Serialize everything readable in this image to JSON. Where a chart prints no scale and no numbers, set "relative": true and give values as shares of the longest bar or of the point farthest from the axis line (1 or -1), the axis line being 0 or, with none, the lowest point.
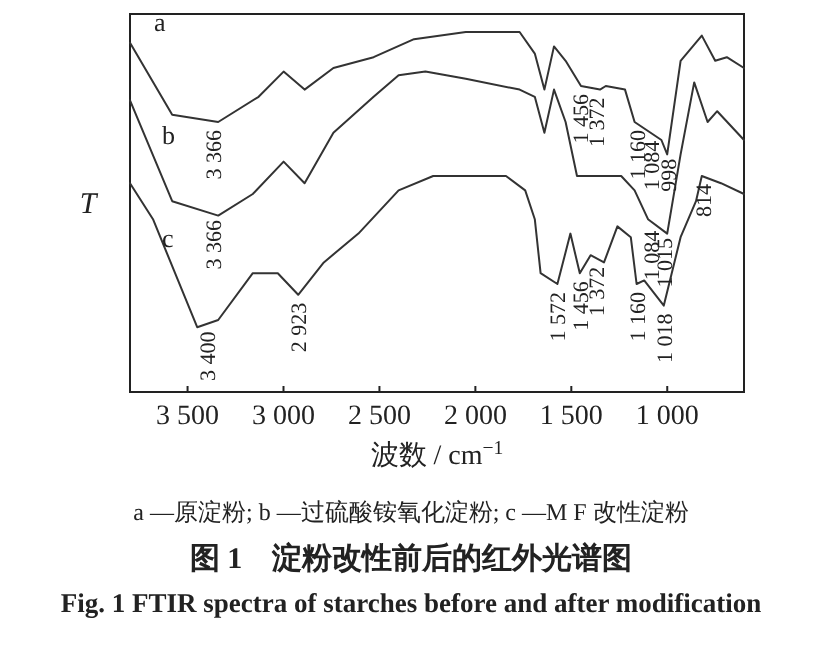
{
  "chart_data": {
    "type": "line",
    "relative": true,
    "title": "图 1　淀粉改性前后的红外光谱图",
    "subtitle": "Fig. 1 FTIR spectra of starches before and after modification",
    "xlabel": "波数 / cm$^{−1}$",
    "ylabel": "T",
    "xlim": [
      3800,
      600
    ],
    "xticks": [
      {
        "value": 3500,
        "label": "3 500"
      },
      {
        "value": 3000,
        "label": "3 000"
      },
      {
        "value": 2500,
        "label": "2 500"
      },
      {
        "value": 2000,
        "label": "2 000"
      },
      {
        "value": 1500,
        "label": "1 500"
      },
      {
        "value": 1000,
        "label": "1 000"
      }
    ],
    "grid": false,
    "legend": false,
    "marker": "none",
    "line_style": "solid",
    "series": [
      {
        "name": "a",
        "color": "#333333",
        "x": [
          3800,
          3580,
          3340,
          3130,
          3000,
          2890,
          2740,
          2530,
          2320,
          2050,
          1770,
          1690,
          1640,
          1590,
          1530,
          1450,
          1350,
          1320,
          1220,
          1170,
          1030,
          1000,
          930,
          820,
          750,
          690,
          600
        ],
        "values": [
          0.97,
          0.77,
          0.75,
          0.82,
          0.89,
          0.84,
          0.9,
          0.93,
          0.98,
          1,
          1,
          0.94,
          0.84,
          0.96,
          0.92,
          0.85,
          0.84,
          0.85,
          0.84,
          0.75,
          0.7,
          0.66,
          0.92,
          0.99,
          0.92,
          0.93,
          0.9
        ]
      },
      {
        "name": "b",
        "color": "#333333",
        "x": [
          3800,
          3580,
          3340,
          3160,
          3000,
          2890,
          2740,
          2530,
          2400,
          2260,
          2050,
          1770,
          1690,
          1640,
          1590,
          1530,
          1470,
          1350,
          1240,
          1170,
          1100,
          1000,
          930,
          860,
          790,
          740,
          600
        ],
        "values": [
          0.81,
          0.53,
          0.49,
          0.55,
          0.64,
          0.58,
          0.72,
          0.82,
          0.88,
          0.89,
          0.87,
          0.84,
          0.82,
          0.72,
          0.84,
          0.75,
          0.6,
          0.6,
          0.6,
          0.56,
          0.48,
          0.44,
          0.66,
          0.86,
          0.75,
          0.78,
          0.7
        ]
      },
      {
        "name": "c",
        "color": "#333333",
        "x": [
          3800,
          3680,
          3450,
          3340,
          3160,
          3030,
          2923,
          2790,
          2610,
          2400,
          2220,
          2050,
          1840,
          1740,
          1690,
          1660,
          1572,
          1505,
          1456,
          1400,
          1330,
          1260,
          1190,
          1160,
          1120,
          1018,
          930,
          850,
          820,
          720,
          600
        ],
        "values": [
          0.58,
          0.48,
          0.18,
          0.2,
          0.33,
          0.33,
          0.27,
          0.36,
          0.44,
          0.56,
          0.6,
          0.6,
          0.6,
          0.56,
          0.48,
          0.33,
          0.3,
          0.44,
          0.33,
          0.38,
          0.36,
          0.46,
          0.43,
          0.3,
          0.31,
          0.24,
          0.43,
          0.53,
          0.6,
          0.58,
          0.55
        ]
      }
    ],
    "annotations": [
      {
        "text": "3 366",
        "x": 3366,
        "y": 0.75
      },
      {
        "text": "1 456",
        "x": 1456,
        "y": 0.85
      },
      {
        "text": "1 372",
        "x": 1372,
        "y": 0.84
      },
      {
        "text": "1 160",
        "x": 1160,
        "y": 0.75
      },
      {
        "text": "1 084",
        "x": 1084,
        "y": 0.72
      },
      {
        "text": "998",
        "x": 998,
        "y": 0.67
      },
      {
        "text": "3 366",
        "x": 3366,
        "y": 0.5
      },
      {
        "text": "3 400",
        "x": 3400,
        "y": 0.19
      },
      {
        "text": "2 923",
        "x": 2923,
        "y": 0.27
      },
      {
        "text": "1 572",
        "x": 1572,
        "y": 0.3
      },
      {
        "text": "1 456",
        "x": 1456,
        "y": 0.33
      },
      {
        "text": "1 372",
        "x": 1372,
        "y": 0.37
      },
      {
        "text": "1 160",
        "x": 1160,
        "y": 0.3
      },
      {
        "text": "1 018",
        "x": 1018,
        "y": 0.24
      },
      {
        "text": "1 084",
        "x": 1084,
        "y": 0.47
      },
      {
        "text": "1 015",
        "x": 1015,
        "y": 0.45
      },
      {
        "text": "814",
        "x": 814,
        "y": 0.6
      },
      "a —原淀粉; b —过硫酸铵氧化淀粉; c —M F 改性淀粉"
    ]
  }
}
